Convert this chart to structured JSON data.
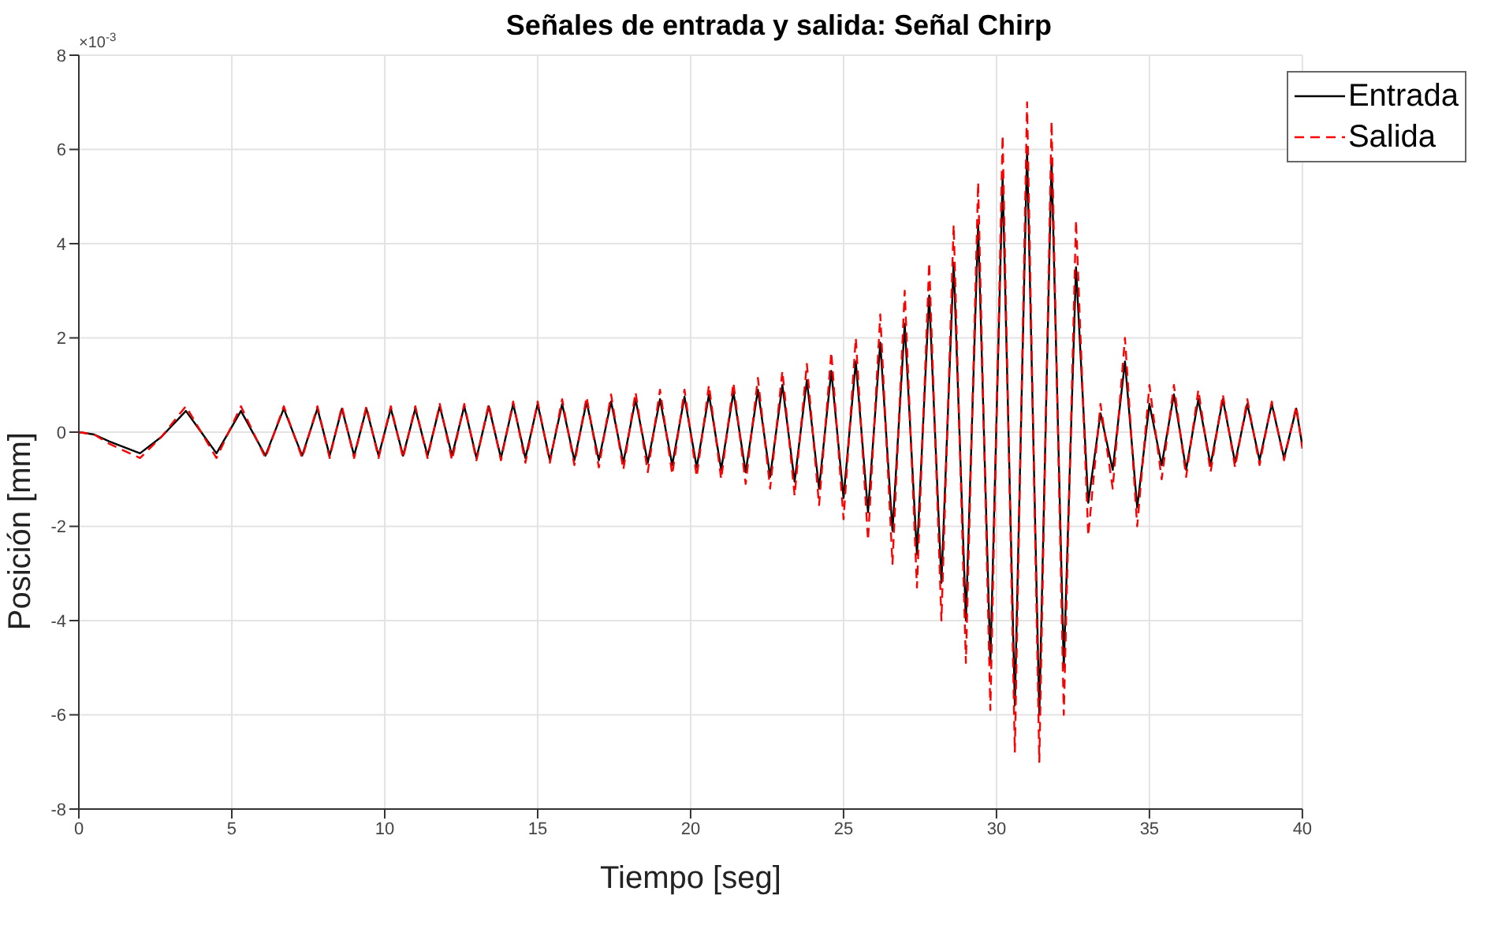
{
  "chart_data": {
    "type": "line",
    "title": "Señales de entrada y salida: Señal Chirp",
    "xlabel": "Tiempo [seg]",
    "ylabel": "Posición [mm]",
    "annotations": [
      "×10$^{-3}$"
    ],
    "x": [
      0,
      0.5,
      1,
      2,
      2.7,
      3.5,
      4.5,
      5.3,
      6.1,
      6.7,
      7.3,
      7.8,
      8.2,
      8.6,
      9.0,
      9.4,
      9.8,
      10.2,
      10.6,
      11.0,
      11.4,
      11.8,
      12.2,
      12.6,
      13.0,
      13.4,
      13.8,
      14.2,
      14.6,
      15.0,
      15.4,
      15.8,
      16.2,
      16.6,
      17.0,
      17.4,
      17.8,
      18.2,
      18.6,
      19.0,
      19.4,
      19.8,
      20.2,
      20.6,
      21.0,
      21.4,
      21.8,
      22.2,
      22.6,
      23.0,
      23.4,
      23.8,
      24.2,
      24.6,
      25.0,
      25.4,
      25.8,
      26.2,
      26.6,
      27.0,
      27.4,
      27.8,
      28.2,
      28.6,
      29.0,
      29.4,
      29.8,
      30.2,
      30.6,
      31.0,
      31.4,
      31.8,
      32.2,
      32.6,
      33.0,
      33.4,
      33.8,
      34.2,
      34.6,
      35.0,
      35.4,
      35.8,
      36.2,
      36.6,
      37.0,
      37.4,
      37.8,
      38.2,
      38.6,
      39.0,
      39.4,
      39.8,
      40.0
    ],
    "series": [
      {
        "name": "Entrada",
        "color": "#000000",
        "line_style": "solid",
        "values": [
          0,
          -0.05,
          -0.2,
          -0.45,
          -0.1,
          0.45,
          -0.45,
          0.45,
          -0.5,
          0.5,
          -0.5,
          0.5,
          -0.5,
          0.5,
          -0.5,
          0.5,
          -0.5,
          0.5,
          -0.5,
          0.5,
          -0.5,
          0.55,
          -0.5,
          0.55,
          -0.55,
          0.55,
          -0.55,
          0.6,
          -0.55,
          0.6,
          -0.6,
          0.6,
          -0.6,
          0.65,
          -0.6,
          0.65,
          -0.65,
          0.7,
          -0.65,
          0.7,
          -0.7,
          0.75,
          -0.75,
          0.8,
          -0.8,
          0.85,
          -0.85,
          0.9,
          -0.95,
          1.0,
          -1.05,
          1.1,
          -1.2,
          1.3,
          -1.4,
          1.5,
          -1.7,
          1.9,
          -2.1,
          2.3,
          -2.6,
          2.9,
          -3.2,
          3.6,
          -4.0,
          4.4,
          -4.9,
          5.4,
          -5.8,
          6.0,
          -6.0,
          5.8,
          -5.0,
          3.5,
          -1.5,
          0.4,
          -0.8,
          1.5,
          -1.6,
          0.6,
          -0.7,
          0.8,
          -0.8,
          0.7,
          -0.7,
          0.7,
          -0.65,
          0.6,
          -0.6,
          0.6,
          -0.55,
          0.5,
          -0.3
        ]
      },
      {
        "name": "Salida",
        "color": "#ff0000",
        "line_style": "dashed",
        "values": [
          0,
          -0.05,
          -0.25,
          -0.55,
          -0.1,
          0.55,
          -0.55,
          0.55,
          -0.55,
          0.55,
          -0.55,
          0.55,
          -0.55,
          0.55,
          -0.55,
          0.55,
          -0.55,
          0.55,
          -0.55,
          0.55,
          -0.55,
          0.6,
          -0.6,
          0.6,
          -0.6,
          0.6,
          -0.6,
          0.65,
          -0.65,
          0.65,
          -0.65,
          0.7,
          -0.7,
          0.75,
          -0.75,
          0.8,
          -0.8,
          0.85,
          -0.85,
          0.9,
          -0.9,
          0.9,
          -0.95,
          1.0,
          -1.0,
          1.05,
          -1.1,
          1.15,
          -1.2,
          1.3,
          -1.35,
          1.45,
          -1.55,
          1.7,
          -1.85,
          2.0,
          -2.3,
          2.5,
          -2.8,
          3.0,
          -3.3,
          3.6,
          -4.0,
          4.4,
          -4.9,
          5.3,
          -5.9,
          6.3,
          -6.8,
          7.0,
          -7.0,
          6.6,
          -6.0,
          4.5,
          -2.2,
          0.6,
          -1.2,
          2.0,
          -2.0,
          1.0,
          -1.0,
          1.0,
          -0.95,
          0.9,
          -0.85,
          0.8,
          -0.75,
          0.7,
          -0.7,
          0.65,
          -0.6,
          0.55,
          -0.35
        ]
      }
    ],
    "xlim": [
      0,
      40
    ],
    "xticks": [
      0,
      5,
      10,
      15,
      20,
      25,
      30,
      35,
      40
    ],
    "ylim": [
      -8,
      8
    ],
    "yticks": [
      -8,
      -6,
      -4,
      -2,
      0,
      2,
      4,
      6,
      8
    ],
    "grid": true,
    "legend": "top right",
    "marker": "none"
  }
}
